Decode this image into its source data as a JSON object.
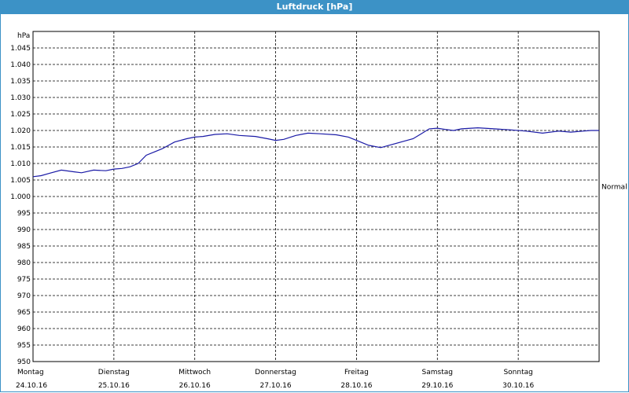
{
  "window": {
    "title": "Luftdruck [hPa]"
  },
  "chart_data": {
    "type": "line",
    "title": "Luftdruck [hPa]",
    "ylabel": "hPa",
    "xlabel": "",
    "ylim": [
      950,
      1050
    ],
    "yticks": [
      950,
      955,
      960,
      965,
      970,
      975,
      980,
      985,
      990,
      995,
      1000,
      1005,
      1010,
      1015,
      1020,
      1025,
      1030,
      1035,
      1040,
      1045
    ],
    "ytick_labels": [
      "950",
      "955",
      "960",
      "965",
      "970",
      "975",
      "980",
      "985",
      "990",
      "995",
      "1.000",
      "1.005",
      "1.010",
      "1.015",
      "1.020",
      "1.025",
      "1.030",
      "1.035",
      "1.040",
      "1.045"
    ],
    "xlim": [
      0,
      7
    ],
    "xticks": [
      {
        "day": "Montag",
        "date": "24.10.16"
      },
      {
        "day": "Dienstag",
        "date": "25.10.16"
      },
      {
        "day": "Mittwoch",
        "date": "26.10.16"
      },
      {
        "day": "Donnerstag",
        "date": "27.10.16"
      },
      {
        "day": "Freitag",
        "date": "28.10.16"
      },
      {
        "day": "Samstag",
        "date": "29.10.16"
      },
      {
        "day": "Sonntag",
        "date": "30.10.16"
      }
    ],
    "grid": true,
    "reference_label": "Normal",
    "reference_value": 1003,
    "line_color": "#1a1aa6",
    "series": [
      {
        "x": [
          0,
          0.1,
          0.2,
          0.35,
          0.5,
          0.6,
          0.75,
          0.9,
          1.0,
          1.1,
          1.2,
          1.3,
          1.4,
          1.5,
          1.6,
          1.75,
          1.9,
          2.0,
          2.1,
          2.25,
          2.4,
          2.55,
          2.75,
          2.9,
          3.0,
          3.1,
          3.25,
          3.4,
          3.55,
          3.75,
          3.9,
          4.0,
          4.15,
          4.3,
          4.4,
          4.55,
          4.7,
          4.8,
          4.9,
          5.0,
          5.1,
          5.2,
          5.3,
          5.5,
          5.7,
          5.9,
          6.1,
          6.3,
          6.5,
          6.65,
          6.8,
          6.9,
          7.0
        ],
        "y": [
          1006,
          1006.3,
          1007,
          1008,
          1007.5,
          1007.2,
          1008,
          1007.8,
          1008.3,
          1008.5,
          1009,
          1010,
          1012.5,
          1013.5,
          1014.5,
          1016.5,
          1017.5,
          1018,
          1018.2,
          1018.8,
          1019,
          1018.5,
          1018.2,
          1017.5,
          1017,
          1017.3,
          1018.5,
          1019.2,
          1019,
          1018.7,
          1018,
          1017,
          1015.5,
          1014.8,
          1015.5,
          1016.5,
          1017.5,
          1019,
          1020.5,
          1020.7,
          1020.3,
          1020,
          1020.5,
          1020.8,
          1020.5,
          1020.2,
          1019.8,
          1019.2,
          1019.8,
          1019.5,
          1019.8,
          1020,
          1020
        ]
      }
    ]
  }
}
